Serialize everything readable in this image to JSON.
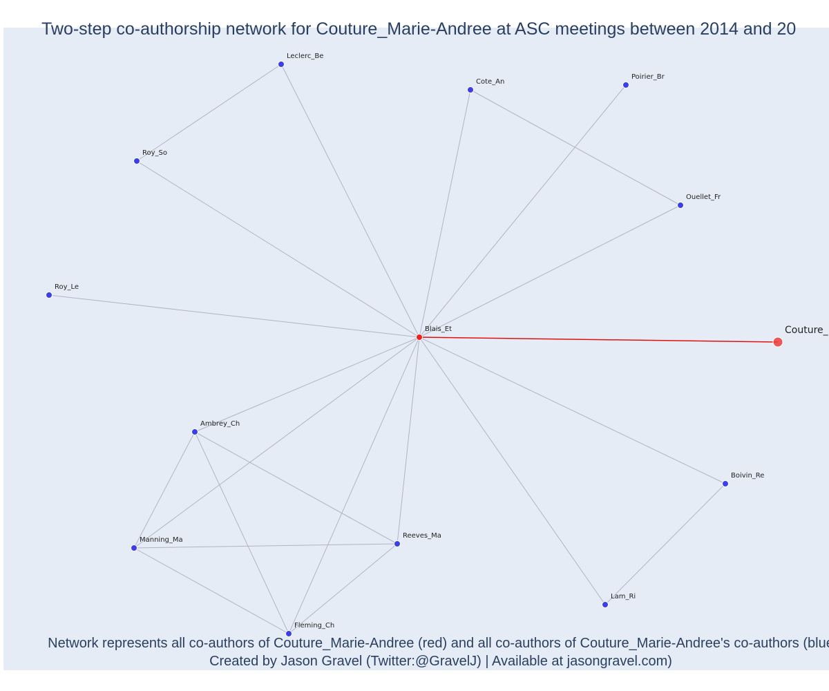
{
  "title": "Two-step co-authorship network for Couture_Marie-Andree at ASC meetings between 2014 and 20",
  "caption_line1": "Network represents all co-authors of Couture_Marie-Andree (red) and all co-authors of Couture_Marie-Andree's co-authors (blue",
  "caption_line2": "Created by Jason Gravel (Twitter:@GravelJ) | Available at jasongravel.com)",
  "colors": {
    "background": "#e5ecf6",
    "ego": "#ef3b3b",
    "coauthor": "#ef1f1f",
    "second": "#3a3fe8",
    "edge": "#b0b3c4",
    "ego_edge": "#e01010"
  },
  "nodes": [
    {
      "id": "Couture_Marie-Andree",
      "label": "Couture_",
      "group": "ego"
    },
    {
      "id": "Blais_Et",
      "label": "Blais_Et",
      "group": "coauthor"
    },
    {
      "id": "Leclerc_Be",
      "label": "Leclerc_Be",
      "group": "second"
    },
    {
      "id": "Cote_An",
      "label": "Cote_An",
      "group": "second"
    },
    {
      "id": "Poirier_Br",
      "label": "Poirier_Br",
      "group": "second"
    },
    {
      "id": "Roy_So",
      "label": "Roy_So",
      "group": "second"
    },
    {
      "id": "Ouellet_Fr",
      "label": "Ouellet_Fr",
      "group": "second"
    },
    {
      "id": "Roy_Le",
      "label": "Roy_Le",
      "group": "second"
    },
    {
      "id": "Ambrey_Ch",
      "label": "Ambrey_Ch",
      "group": "second"
    },
    {
      "id": "Boivin_Re",
      "label": "Boivin_Re",
      "group": "second"
    },
    {
      "id": "Manning_Ma",
      "label": "Manning_Ma",
      "group": "second"
    },
    {
      "id": "Reeves_Ma",
      "label": "Reeves_Ma",
      "group": "second"
    },
    {
      "id": "Lam_Ri",
      "label": "Lam_Ri",
      "group": "second"
    },
    {
      "id": "Fleming_Ch",
      "label": "Fleming_Ch",
      "group": "second"
    }
  ],
  "edges": [
    [
      "Blais_Et",
      "Couture_Marie-Andree"
    ],
    [
      "Blais_Et",
      "Leclerc_Be"
    ],
    [
      "Blais_Et",
      "Cote_An"
    ],
    [
      "Blais_Et",
      "Poirier_Br"
    ],
    [
      "Blais_Et",
      "Roy_So"
    ],
    [
      "Blais_Et",
      "Ouellet_Fr"
    ],
    [
      "Blais_Et",
      "Roy_Le"
    ],
    [
      "Blais_Et",
      "Ambrey_Ch"
    ],
    [
      "Blais_Et",
      "Boivin_Re"
    ],
    [
      "Blais_Et",
      "Manning_Ma"
    ],
    [
      "Blais_Et",
      "Reeves_Ma"
    ],
    [
      "Blais_Et",
      "Lam_Ri"
    ],
    [
      "Blais_Et",
      "Fleming_Ch"
    ],
    [
      "Leclerc_Be",
      "Roy_So"
    ],
    [
      "Cote_An",
      "Ouellet_Fr"
    ],
    [
      "Boivin_Re",
      "Lam_Ri"
    ],
    [
      "Ambrey_Ch",
      "Manning_Ma"
    ],
    [
      "Ambrey_Ch",
      "Reeves_Ma"
    ],
    [
      "Ambrey_Ch",
      "Fleming_Ch"
    ],
    [
      "Manning_Ma",
      "Reeves_Ma"
    ],
    [
      "Manning_Ma",
      "Fleming_Ch"
    ],
    [
      "Reeves_Ma",
      "Fleming_Ch"
    ]
  ]
}
